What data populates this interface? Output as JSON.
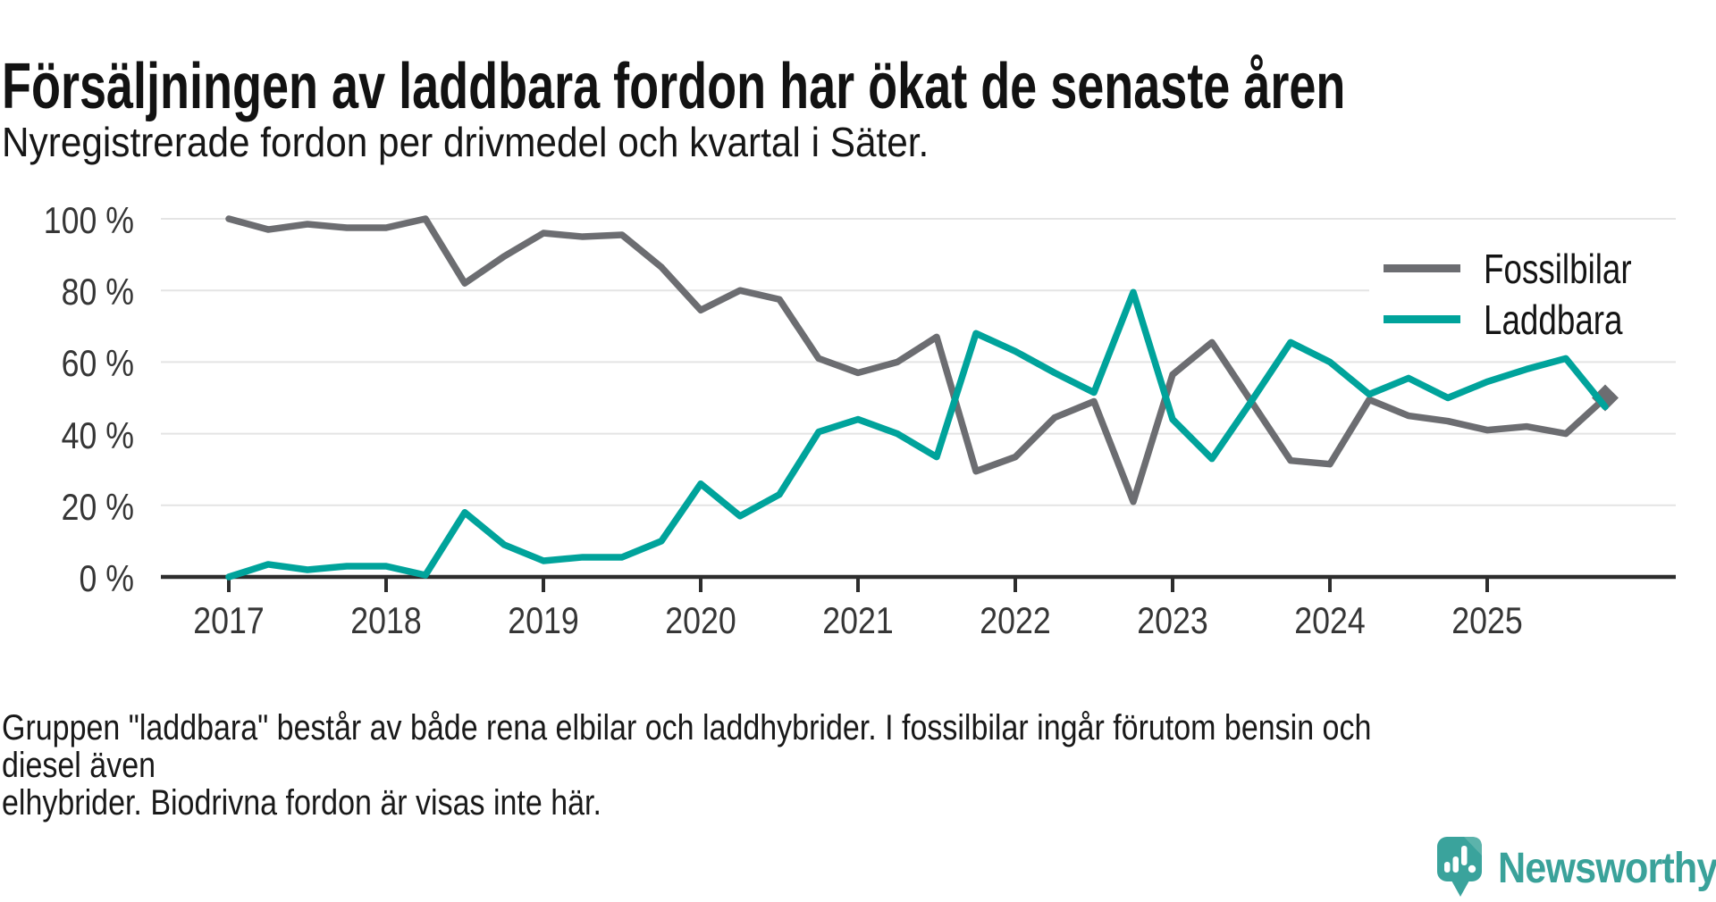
{
  "header": {
    "title": "Försäljningen av laddbara fordon har ökat de senaste åren",
    "subtitle": "Nyregistrerade fordon per drivmedel och kvartal i Säter."
  },
  "chart_data": {
    "type": "line",
    "unit": "%",
    "ylim": [
      0,
      100
    ],
    "grid": "horizontal",
    "legend_position": "top-right-inside",
    "y_ticks": [
      {
        "label": "100 %",
        "value": 100
      },
      {
        "label": "80 %",
        "value": 80
      },
      {
        "label": "60 %",
        "value": 60
      },
      {
        "label": "40 %",
        "value": 40
      },
      {
        "label": "20 %",
        "value": 20
      },
      {
        "label": "0 %",
        "value": 0
      }
    ],
    "x_ticks": [
      {
        "label": "2017",
        "index": 0
      },
      {
        "label": "2018",
        "index": 4
      },
      {
        "label": "2019",
        "index": 8
      },
      {
        "label": "2020",
        "index": 12
      },
      {
        "label": "2021",
        "index": 16
      },
      {
        "label": "2022",
        "index": 20
      },
      {
        "label": "2023",
        "index": 24
      },
      {
        "label": "2024",
        "index": 28
      },
      {
        "label": "2025",
        "index": 32
      }
    ],
    "categories": [
      "2017 Q1",
      "2017 Q2",
      "2017 Q3",
      "2017 Q4",
      "2018 Q1",
      "2018 Q2",
      "2018 Q3",
      "2018 Q4",
      "2019 Q1",
      "2019 Q2",
      "2019 Q3",
      "2019 Q4",
      "2020 Q1",
      "2020 Q2",
      "2020 Q3",
      "2020 Q4",
      "2021 Q1",
      "2021 Q2",
      "2021 Q3",
      "2021 Q4",
      "2022 Q1",
      "2022 Q2",
      "2022 Q3",
      "2022 Q4",
      "2023 Q1",
      "2023 Q2",
      "2023 Q3",
      "2023 Q4",
      "2024 Q1",
      "2024 Q2",
      "2024 Q3",
      "2024 Q4",
      "2025 Q1",
      "2025 Q2",
      "2025 Q3",
      "2025 Q4"
    ],
    "series": [
      {
        "name": "Fossilbilar",
        "color": "#6c6d71",
        "end_marker": "diamond",
        "values": [
          100,
          97,
          98.5,
          97.5,
          97.5,
          100,
          82,
          89.5,
          96,
          95,
          95.5,
          86.5,
          74.5,
          80,
          77.5,
          61,
          57,
          60,
          67,
          29.5,
          33.5,
          44.5,
          49,
          21,
          56.5,
          65.5,
          49,
          32.5,
          31.5,
          49.5,
          45,
          43.5,
          41,
          42,
          40,
          50
        ]
      },
      {
        "name": "Laddbara",
        "color": "#00a39b",
        "end_marker": "none",
        "values": [
          0,
          3.5,
          2,
          3,
          3,
          0.5,
          18,
          9,
          4.5,
          5.5,
          5.5,
          10,
          26,
          17,
          23,
          40.5,
          44,
          40,
          33.5,
          68,
          63,
          57,
          51.5,
          79.5,
          44,
          33,
          49,
          65.5,
          60,
          51,
          55.5,
          50,
          54.5,
          58,
          61,
          47.5
        ]
      }
    ],
    "axis_color": "#2d2d2d",
    "grid_color": "#e4e4e4"
  },
  "footnote": {
    "text": "Gruppen \"laddbara\" består av både rena elbilar och laddhybrider. I fossilbilar ingår förutom bensin och diesel även\nelhybrider. Biodrivna fordon är visas inte här."
  },
  "logo": {
    "text": "Newsworthy",
    "color": "#3aa29a"
  }
}
